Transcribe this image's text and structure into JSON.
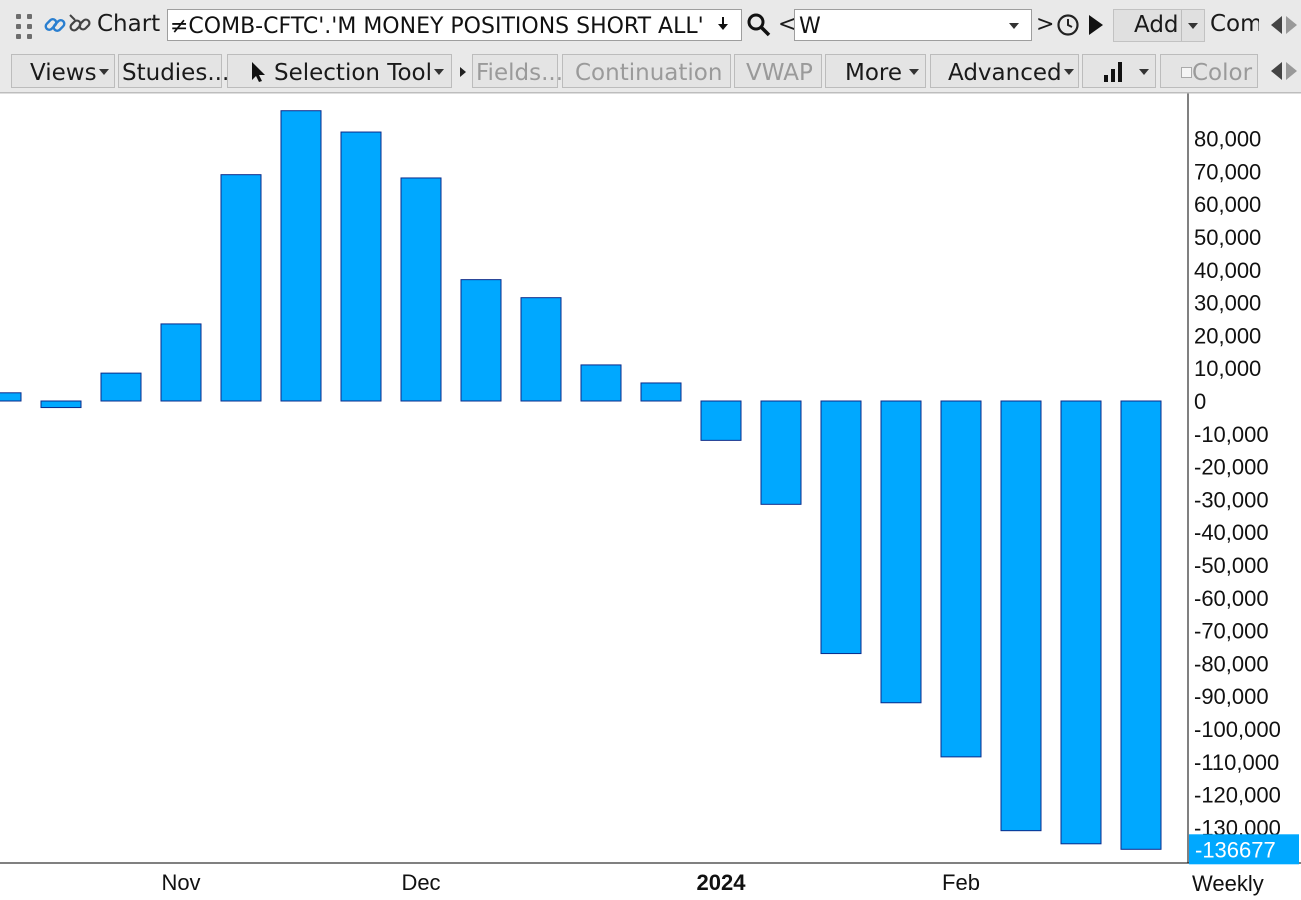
{
  "toolbar": {
    "chart_label": "Chart",
    "symbol_value": "≠COMB-CFTC'.'M MONEY POSITIONS SHORT ALL'",
    "nav_prev": "<",
    "period_value": "W",
    "nav_next": ">",
    "add_label": "Add",
    "com_label": "Com"
  },
  "toolbar2": {
    "views": "Views",
    "studies": "Studies...",
    "selection_tool": "Selection Tool",
    "fields": "Fields...",
    "continuation": "Continuation",
    "vwap": "VWAP",
    "more": "More",
    "advanced": "Advanced",
    "color": "Color"
  },
  "colors": {
    "bar_fill": "#00a8ff",
    "bar_stroke": "#0a2a8a",
    "last_value_bg": "#00a8ff"
  },
  "chart_data": {
    "type": "bar",
    "title": "",
    "xlabel": "",
    "ylabel": "",
    "ylim": [
      -140000,
      90000
    ],
    "y_ticks": [
      80000,
      70000,
      60000,
      50000,
      40000,
      30000,
      20000,
      10000,
      0,
      -10000,
      -20000,
      -30000,
      -40000,
      -50000,
      -60000,
      -70000,
      -80000,
      -90000,
      -100000,
      -110000,
      -120000,
      -130000
    ],
    "y_tick_labels": [
      "80,000",
      "70,000",
      "60,000",
      "50,000",
      "40,000",
      "30,000",
      "20,000",
      "10,000",
      "0",
      "-10,000",
      "-20,000",
      "-30,000",
      "-40,000",
      "-50,000",
      "-60,000",
      "-70,000",
      "-80,000",
      "-90,000",
      "-100,000",
      "-110,000",
      "-120,000",
      "-130,000"
    ],
    "x_labels": [
      {
        "text": "Nov",
        "index": 3,
        "bold": false
      },
      {
        "text": "Dec",
        "index": 7,
        "bold": false
      },
      {
        "text": "2024",
        "index": 12,
        "bold": true
      },
      {
        "text": "Feb",
        "index": 16,
        "bold": false
      }
    ],
    "values": [
      2500,
      -2000,
      8500,
      23500,
      69000,
      88500,
      82000,
      68000,
      37000,
      31500,
      11000,
      5500,
      -12000,
      -31500,
      -77000,
      -92000,
      -108500,
      -131000,
      -135000,
      -136677
    ],
    "last_value_label": "-136677",
    "interval_label": "Weekly",
    "grid": false,
    "legend": "none"
  }
}
